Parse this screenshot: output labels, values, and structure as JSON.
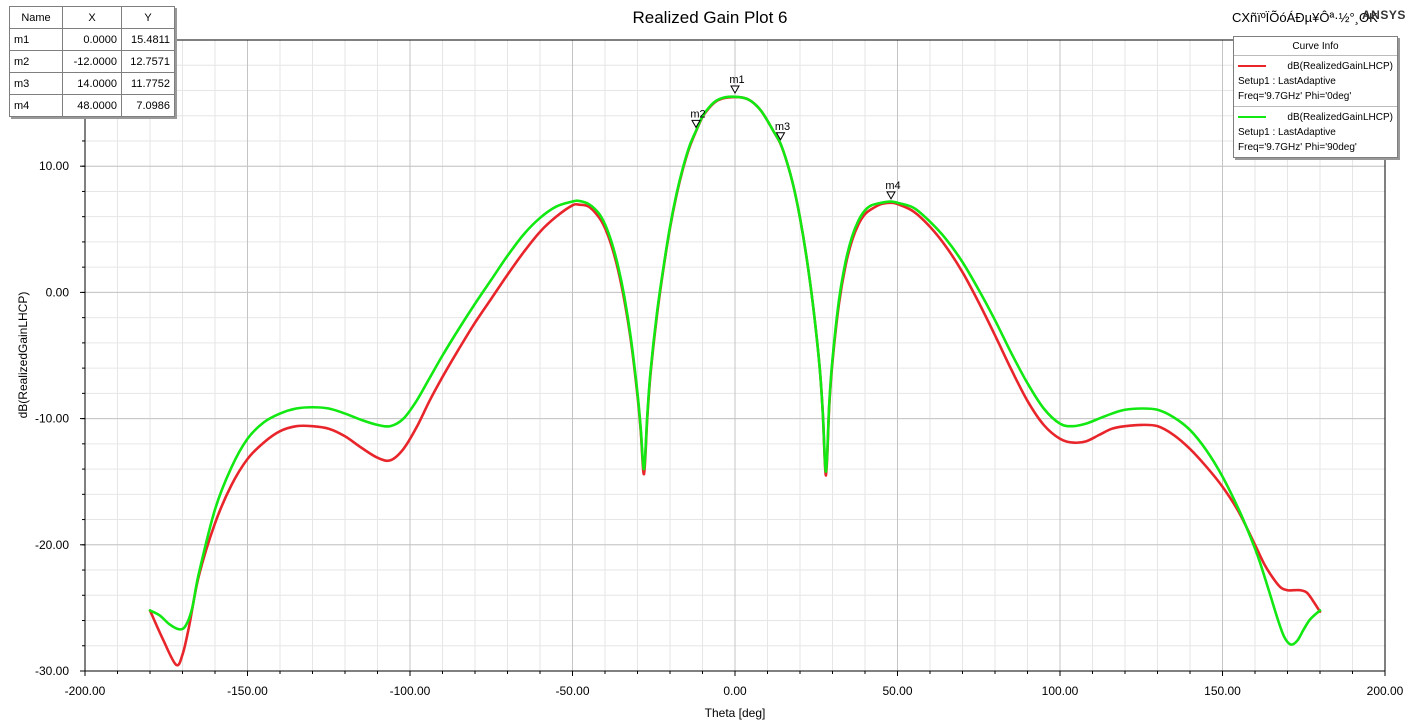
{
  "header": {
    "title": "Realized Gain Plot 6",
    "subtitle": "CXñïºÏÕóÁÐµ¥Ôª·½°¸OK",
    "brand": "ANSYS"
  },
  "marker_table": {
    "headers": [
      "Name",
      "X",
      "Y"
    ],
    "rows": [
      [
        "m1",
        "0.0000",
        "15.4811"
      ],
      [
        "m2",
        "-12.0000",
        "12.7571"
      ],
      [
        "m3",
        "14.0000",
        "11.7752"
      ],
      [
        "m4",
        "48.0000",
        "7.0986"
      ]
    ]
  },
  "legend": {
    "title": "Curve Info",
    "entries": [
      {
        "name": "dB(RealizedGainLHCP)",
        "line1": "Setup1 : LastAdaptive",
        "line2": "Freq='9.7GHz' Phi='0deg'",
        "color": "#e8252b"
      },
      {
        "name": "dB(RealizedGainLHCP)",
        "line1": "Setup1 : LastAdaptive",
        "line2": "Freq='9.7GHz' Phi='90deg'",
        "color": "#12e812"
      }
    ]
  },
  "chart_data": {
    "type": "line",
    "title": "Realized Gain Plot 6",
    "xlabel": "Theta [deg]",
    "ylabel": "dB(RealizedGainLHCP)",
    "xlim": [
      -200,
      200
    ],
    "ylim": [
      -30,
      20
    ],
    "xticks": [
      "-200.00",
      "-150.00",
      "-100.00",
      "-50.00",
      "0.00",
      "50.00",
      "100.00",
      "150.00",
      "200.00"
    ],
    "yticks": [
      "-30.00",
      "-20.00",
      "-10.00",
      "0.00",
      "10.00"
    ],
    "grid": true,
    "legend_position": "top-right",
    "series": [
      {
        "name": "dB(RealizedGainLHCP) Phi='0deg'",
        "color": "#e8252b",
        "x": [
          -180,
          -176,
          -172,
          -170,
          -168,
          -165,
          -160,
          -155,
          -150,
          -145,
          -140,
          -135,
          -130,
          -125,
          -120,
          -115,
          -110,
          -106,
          -102,
          -98,
          -94,
          -90,
          -85,
          -80,
          -75,
          -70,
          -65,
          -60,
          -55,
          -50,
          -48,
          -45,
          -42,
          -40,
          -38,
          -36,
          -34,
          -32,
          -30,
          -29,
          -28,
          -27,
          -26,
          -24,
          -22,
          -20,
          -18,
          -16,
          -14,
          -12,
          -10,
          -8,
          -6,
          -4,
          -2,
          0,
          2,
          4,
          6,
          8,
          10,
          12,
          14,
          16,
          18,
          20,
          22,
          24,
          26,
          27,
          28,
          29,
          30,
          32,
          34,
          36,
          38,
          40,
          42,
          45,
          48,
          50,
          55,
          60,
          65,
          70,
          75,
          80,
          85,
          90,
          95,
          100,
          104,
          108,
          112,
          116,
          120,
          125,
          130,
          135,
          140,
          145,
          150,
          155,
          160,
          163,
          166,
          168,
          170,
          172,
          174,
          176,
          178,
          180
        ],
        "y": [
          -25.2,
          -27.5,
          -29.5,
          -28.7,
          -26.5,
          -22.5,
          -18.3,
          -15.3,
          -13.2,
          -11.9,
          -11.0,
          -10.6,
          -10.6,
          -10.8,
          -11.4,
          -12.3,
          -13.1,
          -13.3,
          -12.4,
          -10.7,
          -8.6,
          -6.7,
          -4.5,
          -2.4,
          -0.5,
          1.4,
          3.2,
          4.8,
          6.0,
          6.9,
          6.95,
          6.8,
          6.0,
          5.1,
          3.7,
          1.8,
          -0.7,
          -3.9,
          -8.2,
          -11.0,
          -14.4,
          -10.0,
          -6.5,
          -1.8,
          1.9,
          5.1,
          7.7,
          9.8,
          11.5,
          12.76,
          13.9,
          14.6,
          15.1,
          15.35,
          15.45,
          15.48,
          15.45,
          15.3,
          14.95,
          14.4,
          13.6,
          12.7,
          11.77,
          10.3,
          8.4,
          5.9,
          2.8,
          -1.0,
          -5.8,
          -9.5,
          -14.5,
          -9.0,
          -5.5,
          -0.9,
          2.1,
          4.1,
          5.4,
          6.2,
          6.6,
          7.0,
          7.1,
          7.0,
          6.4,
          5.2,
          3.6,
          1.6,
          -0.8,
          -3.4,
          -6.1,
          -8.6,
          -10.5,
          -11.6,
          -11.9,
          -11.8,
          -11.3,
          -10.8,
          -10.6,
          -10.5,
          -10.6,
          -11.3,
          -12.4,
          -13.8,
          -15.4,
          -17.4,
          -20.0,
          -21.6,
          -22.8,
          -23.4,
          -23.6,
          -23.6,
          -23.6,
          -23.8,
          -24.5,
          -25.3
        ]
      },
      {
        "name": "dB(RealizedGainLHCP) Phi='90deg'",
        "color": "#12e812",
        "x": [
          -180,
          -177,
          -174,
          -171,
          -169,
          -167,
          -165,
          -160,
          -155,
          -150,
          -145,
          -140,
          -135,
          -130,
          -125,
          -120,
          -115,
          -110,
          -106,
          -102,
          -98,
          -94,
          -90,
          -85,
          -80,
          -75,
          -70,
          -65,
          -60,
          -55,
          -50,
          -48,
          -45,
          -42,
          -40,
          -38,
          -36,
          -34,
          -32,
          -30,
          -29,
          -28,
          -27,
          -26,
          -24,
          -22,
          -20,
          -18,
          -16,
          -14,
          -12,
          -10,
          -8,
          -6,
          -4,
          -2,
          0,
          2,
          4,
          6,
          8,
          10,
          12,
          14,
          16,
          18,
          20,
          22,
          24,
          26,
          27,
          28,
          29,
          30,
          32,
          34,
          36,
          38,
          40,
          42,
          45,
          48,
          50,
          55,
          60,
          65,
          70,
          75,
          80,
          85,
          90,
          95,
          100,
          104,
          108,
          112,
          116,
          120,
          125,
          130,
          135,
          140,
          145,
          150,
          155,
          158,
          161,
          164,
          167,
          169,
          171,
          173,
          175,
          177,
          180
        ],
        "y": [
          -25.2,
          -25.6,
          -26.3,
          -26.7,
          -26.4,
          -25.0,
          -22.3,
          -17.2,
          -13.9,
          -11.6,
          -10.3,
          -9.6,
          -9.2,
          -9.1,
          -9.2,
          -9.6,
          -10.1,
          -10.5,
          -10.6,
          -10.0,
          -8.6,
          -6.8,
          -5.0,
          -2.9,
          -0.9,
          1.0,
          2.9,
          4.6,
          5.9,
          6.8,
          7.2,
          7.25,
          7.0,
          6.3,
          5.4,
          4.0,
          2.1,
          -0.4,
          -3.7,
          -8.0,
          -10.8,
          -14.0,
          -9.8,
          -6.3,
          -1.6,
          2.0,
          5.2,
          7.8,
          9.9,
          11.6,
          12.8,
          13.95,
          14.65,
          15.15,
          15.4,
          15.5,
          15.5,
          15.45,
          15.3,
          14.95,
          14.4,
          13.6,
          12.7,
          11.8,
          10.3,
          8.4,
          5.9,
          2.8,
          -1.0,
          -5.8,
          -9.5,
          -14.2,
          -8.8,
          -5.3,
          -0.6,
          2.4,
          4.4,
          5.7,
          6.5,
          6.9,
          7.1,
          7.2,
          7.1,
          6.7,
          5.6,
          4.2,
          2.4,
          0.2,
          -2.2,
          -4.8,
          -7.2,
          -9.2,
          -10.4,
          -10.6,
          -10.4,
          -10.0,
          -9.6,
          -9.3,
          -9.2,
          -9.3,
          -9.9,
          -10.9,
          -12.5,
          -14.6,
          -17.2,
          -19.0,
          -21.0,
          -23.4,
          -25.9,
          -27.3,
          -27.9,
          -27.6,
          -26.7,
          -25.9,
          -25.2
        ]
      }
    ],
    "markers": [
      {
        "name": "m1",
        "x": 0,
        "y": 15.4811
      },
      {
        "name": "m2",
        "x": -12,
        "y": 12.7571
      },
      {
        "name": "m3",
        "x": 14,
        "y": 11.7752
      },
      {
        "name": "m4",
        "x": 48,
        "y": 7.0986
      }
    ]
  }
}
